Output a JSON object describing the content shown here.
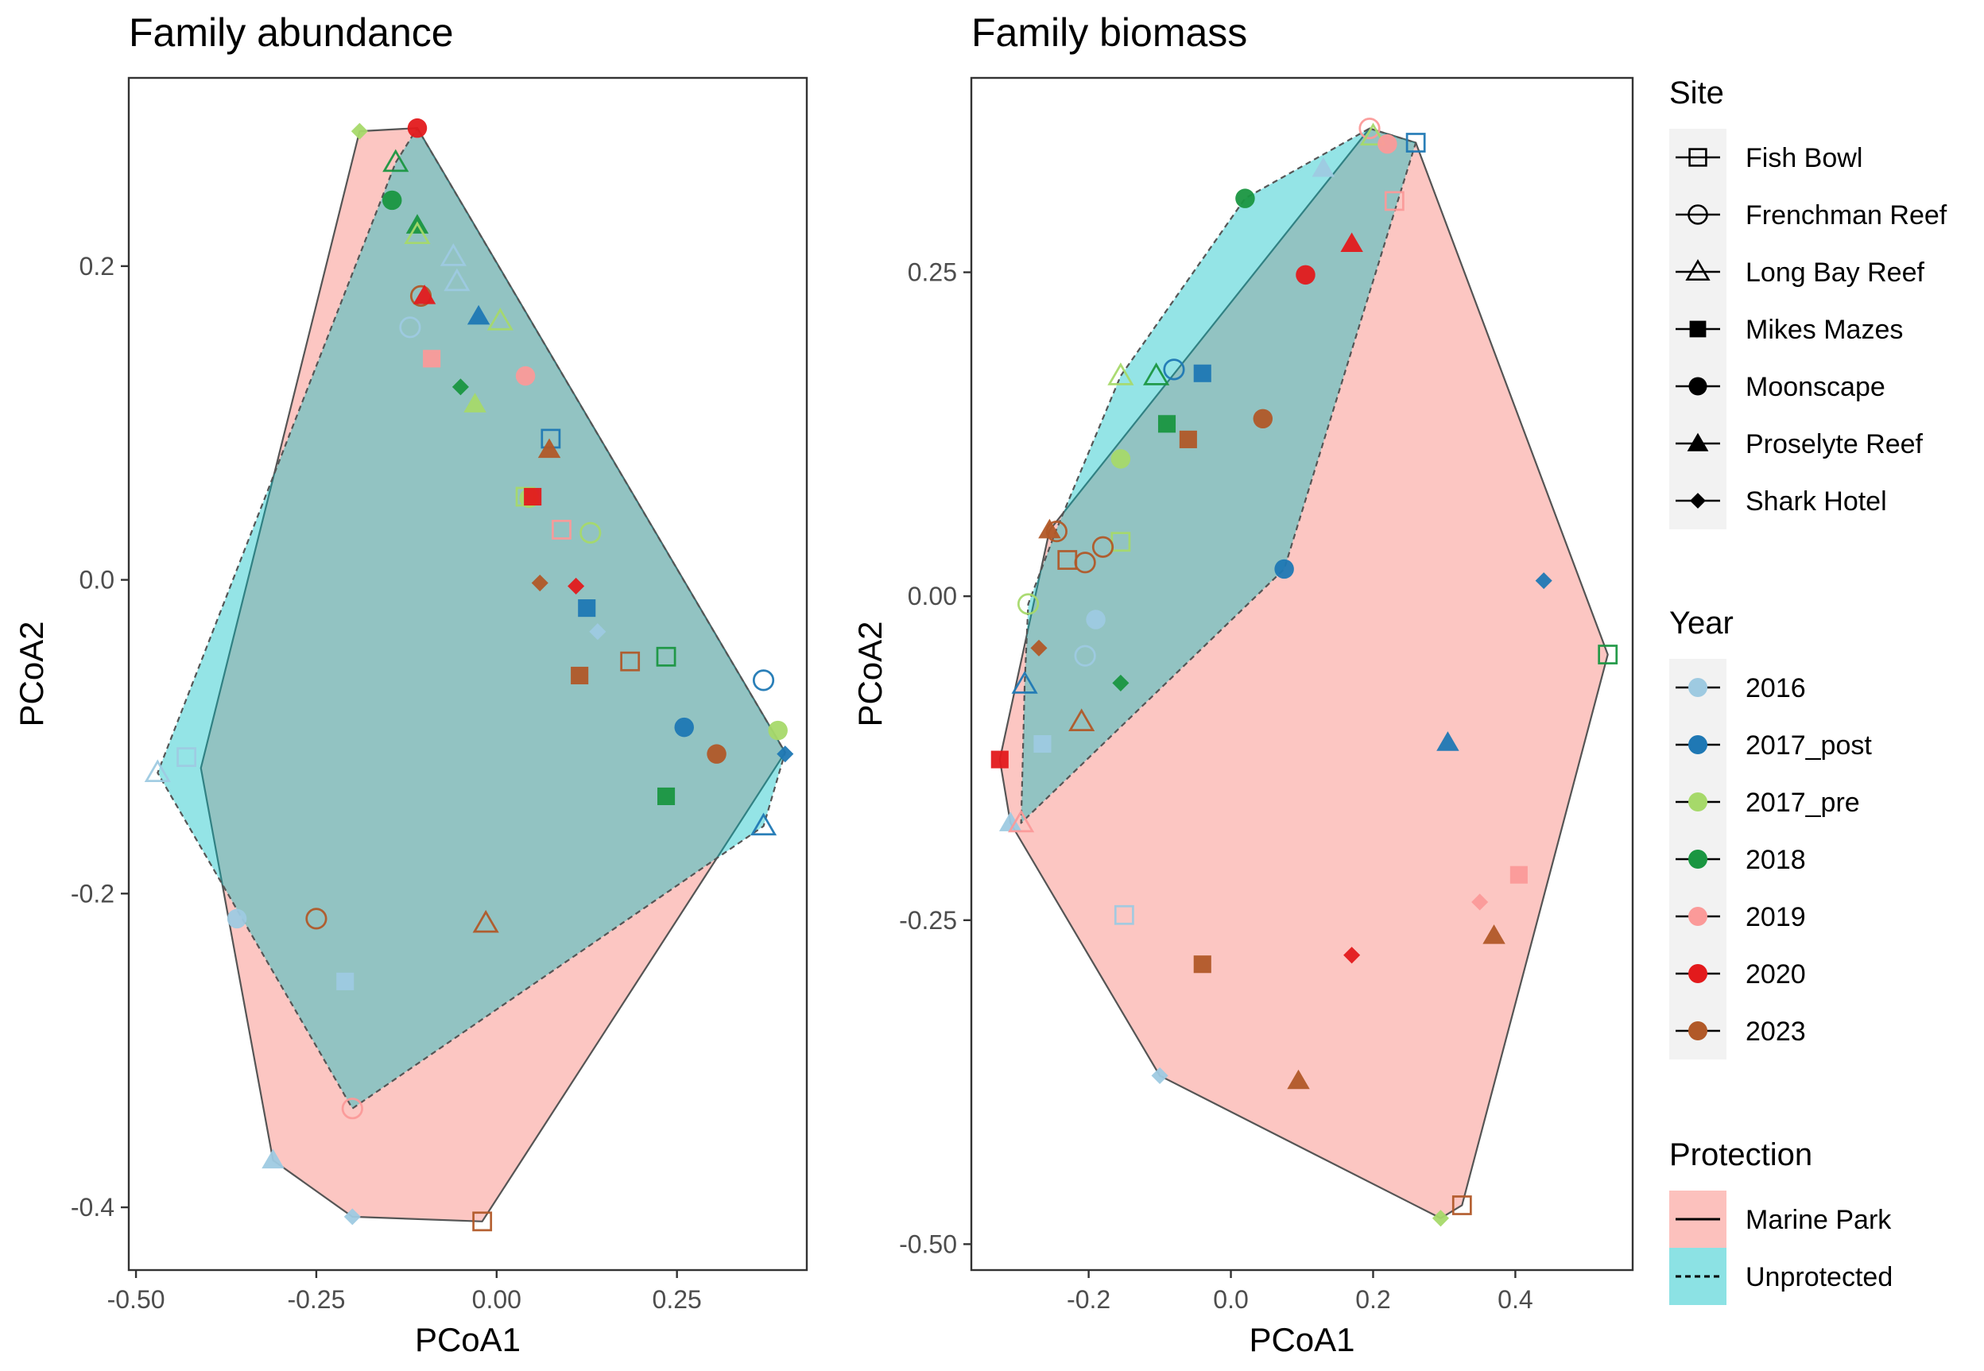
{
  "legends": {
    "site": {
      "title": "Site",
      "items": [
        {
          "label": "Fish Bowl",
          "shape": "square-open"
        },
        {
          "label": "Frenchman Reef",
          "shape": "circle-open"
        },
        {
          "label": "Long Bay Reef",
          "shape": "triangle-open"
        },
        {
          "label": "Mikes Mazes",
          "shape": "square"
        },
        {
          "label": "Moonscape",
          "shape": "circle"
        },
        {
          "label": "Proselyte Reef",
          "shape": "triangle"
        },
        {
          "label": "Shark Hotel",
          "shape": "diamond"
        }
      ]
    },
    "year": {
      "title": "Year",
      "items": [
        {
          "label": "2016",
          "color": "#9ecae1"
        },
        {
          "label": "2017_post",
          "color": "#1f78b4"
        },
        {
          "label": "2017_pre",
          "color": "#a6d96a"
        },
        {
          "label": "2018",
          "color": "#1a9641"
        },
        {
          "label": "2019",
          "color": "#fb9a99"
        },
        {
          "label": "2020",
          "color": "#e31a1c"
        },
        {
          "label": "2023",
          "color": "#b15928"
        }
      ]
    },
    "protection": {
      "title": "Protection",
      "items": [
        {
          "label": "Marine Park",
          "fill": "#f8766d",
          "line": "solid"
        },
        {
          "label": "Unprotected",
          "fill": "#00bfc4",
          "line": "dashed"
        }
      ]
    }
  },
  "chart_data": [
    {
      "type": "scatter",
      "title": "Family abundance",
      "xlabel": "PCoA1",
      "ylabel": "PCoA2",
      "xlim": [
        -0.51,
        0.43
      ],
      "ylim": [
        -0.44,
        0.32
      ],
      "xticks": [
        -0.5,
        -0.25,
        0.0,
        0.25
      ],
      "yticks": [
        -0.4,
        -0.2,
        0.0,
        0.2
      ],
      "xtick_labels": [
        "-0.50",
        "-0.25",
        "0.00",
        "0.25"
      ],
      "ytick_labels": [
        "-0.4",
        "-0.2",
        "0.0",
        "0.2"
      ],
      "hulls": [
        {
          "protection": "Marine Park",
          "points": [
            [
              -0.19,
              0.286
            ],
            [
              -0.11,
              0.288
            ],
            [
              0.4,
              -0.11
            ],
            [
              -0.02,
              -0.409
            ],
            [
              -0.2,
              -0.406
            ],
            [
              -0.31,
              -0.37
            ],
            [
              -0.41,
              -0.12
            ]
          ]
        },
        {
          "protection": "Unprotected",
          "points": [
            [
              -0.14,
              0.266
            ],
            [
              -0.11,
              0.288
            ],
            [
              0.4,
              -0.11
            ],
            [
              0.37,
              -0.157
            ],
            [
              -0.2,
              -0.337
            ],
            [
              -0.47,
              -0.123
            ]
          ]
        }
      ],
      "points": [
        {
          "x": -0.19,
          "y": 0.286,
          "site": "Shark Hotel",
          "year": "2017_pre"
        },
        {
          "x": -0.11,
          "y": 0.288,
          "site": "Moonscape",
          "year": "2020"
        },
        {
          "x": -0.14,
          "y": 0.266,
          "site": "Long Bay Reef",
          "year": "2018"
        },
        {
          "x": -0.145,
          "y": 0.242,
          "site": "Moonscape",
          "year": "2018"
        },
        {
          "x": -0.11,
          "y": 0.226,
          "site": "Proselyte Reef",
          "year": "2018"
        },
        {
          "x": -0.11,
          "y": 0.22,
          "site": "Long Bay Reef",
          "year": "2017_pre"
        },
        {
          "x": -0.06,
          "y": 0.206,
          "site": "Long Bay Reef",
          "year": "2016"
        },
        {
          "x": -0.055,
          "y": 0.19,
          "site": "Long Bay Reef",
          "year": "2016"
        },
        {
          "x": -0.105,
          "y": 0.181,
          "site": "Frenchman Reef",
          "year": "2023"
        },
        {
          "x": -0.1,
          "y": 0.181,
          "site": "Proselyte Reef",
          "year": "2020"
        },
        {
          "x": -0.025,
          "y": 0.168,
          "site": "Proselyte Reef",
          "year": "2017_post"
        },
        {
          "x": 0.005,
          "y": 0.165,
          "site": "Long Bay Reef",
          "year": "2017_pre"
        },
        {
          "x": -0.12,
          "y": 0.161,
          "site": "Frenchman Reef",
          "year": "2016"
        },
        {
          "x": -0.09,
          "y": 0.141,
          "site": "Mikes Mazes",
          "year": "2019"
        },
        {
          "x": 0.04,
          "y": 0.13,
          "site": "Moonscape",
          "year": "2019"
        },
        {
          "x": -0.05,
          "y": 0.123,
          "site": "Shark Hotel",
          "year": "2018"
        },
        {
          "x": -0.03,
          "y": 0.112,
          "site": "Proselyte Reef",
          "year": "2017_pre"
        },
        {
          "x": 0.075,
          "y": 0.09,
          "site": "Fish Bowl",
          "year": "2017_post"
        },
        {
          "x": 0.073,
          "y": 0.083,
          "site": "Proselyte Reef",
          "year": "2023"
        },
        {
          "x": 0.04,
          "y": 0.053,
          "site": "Fish Bowl",
          "year": "2017_pre"
        },
        {
          "x": 0.045,
          "y": 0.052,
          "site": "Moonscape",
          "year": "2017_pre"
        },
        {
          "x": 0.05,
          "y": 0.053,
          "site": "Mikes Mazes",
          "year": "2020"
        },
        {
          "x": 0.09,
          "y": 0.032,
          "site": "Fish Bowl",
          "year": "2019"
        },
        {
          "x": 0.13,
          "y": 0.03,
          "site": "Frenchman Reef",
          "year": "2017_pre"
        },
        {
          "x": 0.06,
          "y": -0.002,
          "site": "Shark Hotel",
          "year": "2023"
        },
        {
          "x": 0.11,
          "y": -0.004,
          "site": "Shark Hotel",
          "year": "2020"
        },
        {
          "x": 0.125,
          "y": -0.018,
          "site": "Mikes Mazes",
          "year": "2017_post"
        },
        {
          "x": 0.14,
          "y": -0.033,
          "site": "Shark Hotel",
          "year": "2016"
        },
        {
          "x": 0.185,
          "y": -0.052,
          "site": "Fish Bowl",
          "year": "2023"
        },
        {
          "x": 0.235,
          "y": -0.049,
          "site": "Fish Bowl",
          "year": "2018"
        },
        {
          "x": 0.115,
          "y": -0.061,
          "site": "Mikes Mazes",
          "year": "2023"
        },
        {
          "x": 0.37,
          "y": -0.064,
          "site": "Frenchman Reef",
          "year": "2017_post"
        },
        {
          "x": 0.26,
          "y": -0.094,
          "site": "Moonscape",
          "year": "2017_post"
        },
        {
          "x": 0.39,
          "y": -0.096,
          "site": "Moonscape",
          "year": "2017_pre"
        },
        {
          "x": 0.305,
          "y": -0.111,
          "site": "Moonscape",
          "year": "2023"
        },
        {
          "x": 0.4,
          "y": -0.111,
          "site": "Shark Hotel",
          "year": "2017_post"
        },
        {
          "x": -0.43,
          "y": -0.113,
          "site": "Fish Bowl",
          "year": "2016"
        },
        {
          "x": -0.47,
          "y": -0.123,
          "site": "Long Bay Reef",
          "year": "2016"
        },
        {
          "x": 0.235,
          "y": -0.138,
          "site": "Mikes Mazes",
          "year": "2018"
        },
        {
          "x": 0.37,
          "y": -0.157,
          "site": "Long Bay Reef",
          "year": "2017_post"
        },
        {
          "x": -0.36,
          "y": -0.216,
          "site": "Moonscape",
          "year": "2016"
        },
        {
          "x": -0.25,
          "y": -0.216,
          "site": "Frenchman Reef",
          "year": "2023"
        },
        {
          "x": -0.015,
          "y": -0.219,
          "site": "Long Bay Reef",
          "year": "2023"
        },
        {
          "x": -0.21,
          "y": -0.256,
          "site": "Mikes Mazes",
          "year": "2016"
        },
        {
          "x": -0.2,
          "y": -0.337,
          "site": "Frenchman Reef",
          "year": "2019"
        },
        {
          "x": -0.31,
          "y": -0.37,
          "site": "Proselyte Reef",
          "year": "2016"
        },
        {
          "x": -0.2,
          "y": -0.406,
          "site": "Shark Hotel",
          "year": "2016"
        },
        {
          "x": -0.02,
          "y": -0.409,
          "site": "Fish Bowl",
          "year": "2023"
        }
      ]
    },
    {
      "type": "scatter",
      "title": "Family biomass",
      "xlabel": "PCoA1",
      "ylabel": "PCoA2",
      "xlim": [
        -0.365,
        0.565
      ],
      "ylim": [
        -0.52,
        0.4
      ],
      "xticks": [
        -0.2,
        0.0,
        0.2,
        0.4
      ],
      "yticks": [
        -0.5,
        -0.25,
        0.0,
        0.25
      ],
      "xtick_labels": [
        "-0.2",
        "0.0",
        "0.2",
        "0.4"
      ],
      "ytick_labels": [
        "-0.50",
        "-0.25",
        "0.00",
        "0.25"
      ],
      "hulls": [
        {
          "protection": "Marine Park",
          "points": [
            [
              0.195,
              0.361
            ],
            [
              0.26,
              0.35
            ],
            [
              0.53,
              -0.045
            ],
            [
              0.325,
              -0.47
            ],
            [
              0.295,
              -0.48
            ],
            [
              -0.1,
              -0.37
            ],
            [
              -0.31,
              -0.175
            ],
            [
              -0.325,
              -0.126
            ],
            [
              -0.255,
              0.051
            ]
          ]
        },
        {
          "protection": "Unprotected",
          "points": [
            [
              0.195,
              0.361
            ],
            [
              0.26,
              0.35
            ],
            [
              0.075,
              0.021
            ],
            [
              -0.295,
              -0.175
            ],
            [
              -0.29,
              -0.068
            ],
            [
              -0.285,
              -0.006
            ],
            [
              -0.245,
              0.052
            ],
            [
              -0.155,
              0.17
            ],
            [
              0.02,
              0.307
            ]
          ]
        }
      ],
      "points": [
        {
          "x": 0.195,
          "y": 0.361,
          "site": "Frenchman Reef",
          "year": "2019"
        },
        {
          "x": 0.2,
          "y": 0.355,
          "site": "Long Bay Reef",
          "year": "2017_pre"
        },
        {
          "x": 0.22,
          "y": 0.349,
          "site": "Moonscape",
          "year": "2019"
        },
        {
          "x": 0.26,
          "y": 0.35,
          "site": "Fish Bowl",
          "year": "2017_post"
        },
        {
          "x": 0.13,
          "y": 0.33,
          "site": "Proselyte Reef",
          "year": "2016"
        },
        {
          "x": 0.02,
          "y": 0.307,
          "site": "Moonscape",
          "year": "2018"
        },
        {
          "x": 0.23,
          "y": 0.305,
          "site": "Fish Bowl",
          "year": "2019"
        },
        {
          "x": 0.17,
          "y": 0.272,
          "site": "Proselyte Reef",
          "year": "2020"
        },
        {
          "x": 0.105,
          "y": 0.248,
          "site": "Moonscape",
          "year": "2020"
        },
        {
          "x": -0.08,
          "y": 0.175,
          "site": "Frenchman Reef",
          "year": "2017_post"
        },
        {
          "x": -0.04,
          "y": 0.172,
          "site": "Mikes Mazes",
          "year": "2017_post"
        },
        {
          "x": -0.155,
          "y": 0.17,
          "site": "Long Bay Reef",
          "year": "2017_pre"
        },
        {
          "x": -0.105,
          "y": 0.17,
          "site": "Long Bay Reef",
          "year": "2018"
        },
        {
          "x": 0.045,
          "y": 0.137,
          "site": "Moonscape",
          "year": "2023"
        },
        {
          "x": -0.09,
          "y": 0.133,
          "site": "Mikes Mazes",
          "year": "2018"
        },
        {
          "x": -0.06,
          "y": 0.121,
          "site": "Mikes Mazes",
          "year": "2023"
        },
        {
          "x": -0.155,
          "y": 0.106,
          "site": "Moonscape",
          "year": "2017_pre"
        },
        {
          "x": -0.255,
          "y": 0.051,
          "site": "Proselyte Reef",
          "year": "2023"
        },
        {
          "x": -0.245,
          "y": 0.05,
          "site": "Frenchman Reef",
          "year": "2023"
        },
        {
          "x": -0.155,
          "y": 0.042,
          "site": "Fish Bowl",
          "year": "2017_pre"
        },
        {
          "x": -0.18,
          "y": 0.038,
          "site": "Frenchman Reef",
          "year": "2023"
        },
        {
          "x": -0.23,
          "y": 0.028,
          "site": "Fish Bowl",
          "year": "2023"
        },
        {
          "x": -0.205,
          "y": 0.026,
          "site": "Frenchman Reef",
          "year": "2023"
        },
        {
          "x": 0.075,
          "y": 0.021,
          "site": "Moonscape",
          "year": "2017_post"
        },
        {
          "x": 0.44,
          "y": 0.012,
          "site": "Shark Hotel",
          "year": "2017_post"
        },
        {
          "x": -0.285,
          "y": -0.006,
          "site": "Frenchman Reef",
          "year": "2017_pre"
        },
        {
          "x": -0.19,
          "y": -0.018,
          "site": "Moonscape",
          "year": "2016"
        },
        {
          "x": -0.27,
          "y": -0.04,
          "site": "Shark Hotel",
          "year": "2023"
        },
        {
          "x": -0.205,
          "y": -0.046,
          "site": "Frenchman Reef",
          "year": "2016"
        },
        {
          "x": 0.53,
          "y": -0.045,
          "site": "Fish Bowl",
          "year": "2018"
        },
        {
          "x": -0.155,
          "y": -0.067,
          "site": "Shark Hotel",
          "year": "2018"
        },
        {
          "x": -0.29,
          "y": -0.068,
          "site": "Long Bay Reef",
          "year": "2017_post"
        },
        {
          "x": -0.21,
          "y": -0.097,
          "site": "Long Bay Reef",
          "year": "2023"
        },
        {
          "x": 0.305,
          "y": -0.113,
          "site": "Proselyte Reef",
          "year": "2017_post"
        },
        {
          "x": -0.265,
          "y": -0.114,
          "site": "Mikes Mazes",
          "year": "2016"
        },
        {
          "x": -0.325,
          "y": -0.126,
          "site": "Mikes Mazes",
          "year": "2020"
        },
        {
          "x": -0.31,
          "y": -0.175,
          "site": "Proselyte Reef",
          "year": "2016"
        },
        {
          "x": -0.295,
          "y": -0.175,
          "site": "Long Bay Reef",
          "year": "2019"
        },
        {
          "x": 0.405,
          "y": -0.215,
          "site": "Mikes Mazes",
          "year": "2019"
        },
        {
          "x": 0.35,
          "y": -0.236,
          "site": "Shark Hotel",
          "year": "2019"
        },
        {
          "x": -0.15,
          "y": -0.246,
          "site": "Fish Bowl",
          "year": "2016"
        },
        {
          "x": 0.37,
          "y": -0.262,
          "site": "Proselyte Reef",
          "year": "2023"
        },
        {
          "x": 0.17,
          "y": -0.277,
          "site": "Shark Hotel",
          "year": "2020"
        },
        {
          "x": -0.04,
          "y": -0.284,
          "site": "Mikes Mazes",
          "year": "2023"
        },
        {
          "x": -0.1,
          "y": -0.37,
          "site": "Shark Hotel",
          "year": "2016"
        },
        {
          "x": 0.095,
          "y": -0.374,
          "site": "Proselyte Reef",
          "year": "2023"
        },
        {
          "x": 0.325,
          "y": -0.47,
          "site": "Fish Bowl",
          "year": "2023"
        },
        {
          "x": 0.295,
          "y": -0.48,
          "site": "Shark Hotel",
          "year": "2017_pre"
        }
      ]
    }
  ]
}
